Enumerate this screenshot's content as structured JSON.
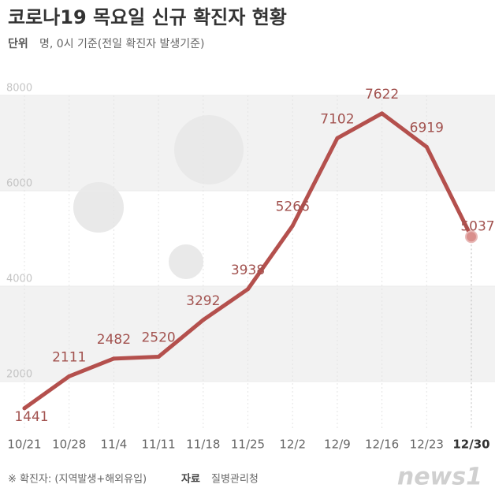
{
  "chart_data": {
    "type": "line",
    "title": "코로나19 목요일 신규 확진자 현황",
    "unit_label": "단위",
    "unit": "명, 0시 기준(전일 확진자 발생기준)",
    "categories": [
      "10/21",
      "10/28",
      "11/4",
      "11/11",
      "11/18",
      "11/25",
      "12/2",
      "12/9",
      "12/16",
      "12/23",
      "12/30"
    ],
    "values": [
      1441,
      2111,
      2482,
      2520,
      3292,
      3938,
      5266,
      7102,
      7622,
      6919,
      5037
    ],
    "color": "#b4504d",
    "ylim": [
      1000,
      8000
    ],
    "yticks": [
      2000,
      4000,
      6000,
      8000
    ],
    "grid": true,
    "footnote": "※ 확진자: (지역발생+해외유입)",
    "source_label": "자료",
    "source": "질병관리청",
    "logo": "news1"
  }
}
